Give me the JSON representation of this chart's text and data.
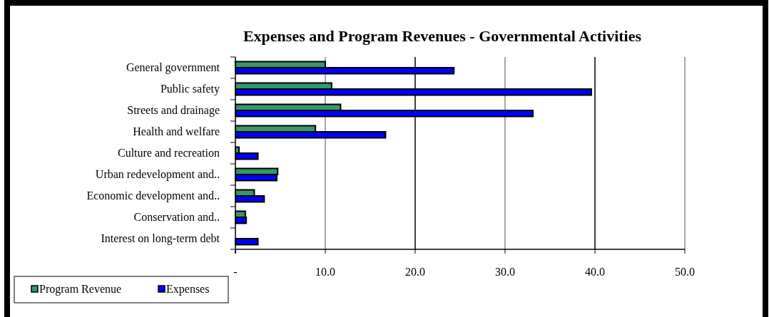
{
  "chart_data": {
    "type": "bar",
    "orientation": "horizontal",
    "title": "Expenses and Program Revenues - Governmental Activities",
    "categories": [
      "General government",
      "Public safety",
      "Streets and drainage",
      "Health and welfare",
      "Culture and recreation",
      "Urban redevelopment and..",
      "Economic development and..",
      "Conservation and..",
      "Interest on long-term debt"
    ],
    "series": [
      {
        "name": "Program Revenue",
        "color": "#339966",
        "values": [
          10.0,
          10.7,
          11.7,
          8.9,
          0.4,
          4.7,
          2.1,
          1.1,
          0
        ]
      },
      {
        "name": "Expenses",
        "color": "#0000ff",
        "values": [
          24.3,
          39.6,
          33.1,
          16.7,
          2.5,
          4.6,
          3.2,
          1.2,
          2.5
        ]
      }
    ],
    "xlim": [
      0,
      50
    ],
    "xticks": [
      {
        "value": 0,
        "label": "-"
      },
      {
        "value": 10,
        "label": "10.0"
      },
      {
        "value": 20,
        "label": "20.0"
      },
      {
        "value": 30,
        "label": "30.0"
      },
      {
        "value": 40,
        "label": "40.0"
      },
      {
        "value": 50,
        "label": "50.0"
      }
    ],
    "grid": "x",
    "legend": "bottom left"
  }
}
